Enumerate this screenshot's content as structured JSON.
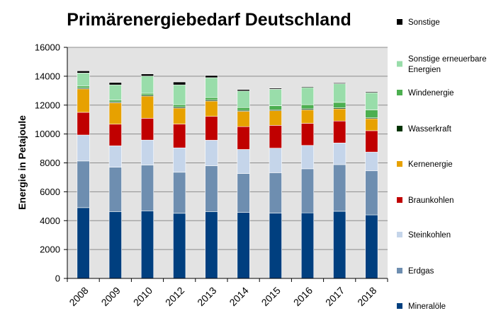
{
  "chart_data": {
    "type": "bar",
    "stacked": true,
    "title": "Primärenergiebedarf Deutschland",
    "xlabel": "",
    "ylabel": "Energie in Petajoule",
    "ylim": [
      0,
      16000
    ],
    "yticks": [
      0,
      2000,
      4000,
      6000,
      8000,
      10000,
      12000,
      14000,
      16000
    ],
    "grid": true,
    "legend_position": "right",
    "categories": [
      "2008",
      "2009",
      "2010",
      "2012",
      "2013",
      "2014",
      "2015",
      "2016",
      "2017",
      "2018"
    ],
    "series": [
      {
        "name": "Mineralöle",
        "color": "#003F7F",
        "values": [
          4900,
          4630,
          4680,
          4510,
          4630,
          4570,
          4520,
          4540,
          4650,
          4400
        ]
      },
      {
        "name": "Erdgas",
        "color": "#6E8EB0",
        "values": [
          3230,
          3070,
          3170,
          2840,
          3170,
          2690,
          2800,
          3050,
          3230,
          3050
        ]
      },
      {
        "name": "Steinkohlen",
        "color": "#C5D5EA",
        "values": [
          1800,
          1480,
          1730,
          1690,
          1770,
          1670,
          1700,
          1620,
          1500,
          1300
        ]
      },
      {
        "name": "Braunkohlen",
        "color": "#C00000",
        "values": [
          1570,
          1500,
          1510,
          1650,
          1650,
          1580,
          1580,
          1530,
          1520,
          1480
        ]
      },
      {
        "name": "Kernenergie",
        "color": "#E7A100",
        "values": [
          1620,
          1480,
          1530,
          1100,
          1060,
          1060,
          1010,
          930,
          840,
          830
        ]
      },
      {
        "name": "Wasserkraft",
        "color": "#003300",
        "values": [
          70,
          70,
          70,
          80,
          80,
          70,
          70,
          80,
          70,
          60
        ]
      },
      {
        "name": "Windenergie",
        "color": "#4CAF50",
        "values": [
          130,
          130,
          130,
          160,
          160,
          190,
          280,
          280,
          380,
          550
        ]
      },
      {
        "name": "Sonstige erneuerbare Energien",
        "color": "#99DDAA",
        "values": [
          900,
          1040,
          1190,
          1370,
          1380,
          1150,
          1140,
          1190,
          1290,
          1190
        ]
      },
      {
        "name": "Sonstige",
        "color": "#000000",
        "values": [
          150,
          170,
          150,
          200,
          150,
          100,
          70,
          60,
          60,
          60
        ]
      }
    ]
  },
  "legend": {
    "items": [
      {
        "label_lines": [
          "Sonstige"
        ],
        "color": "#000000"
      },
      {
        "label_lines": [
          "Sonstige erneuerbare",
          "Energien"
        ],
        "color": "#99DDAA"
      },
      {
        "label_lines": [
          "Windenergie"
        ],
        "color": "#4CAF50"
      },
      {
        "label_lines": [
          "Wasserkraft"
        ],
        "color": "#003300"
      },
      {
        "label_lines": [
          "Kernenergie"
        ],
        "color": "#E7A100"
      },
      {
        "label_lines": [
          "Braunkohlen"
        ],
        "color": "#C00000"
      },
      {
        "label_lines": [
          "Steinkohlen"
        ],
        "color": "#C5D5EA"
      },
      {
        "label_lines": [
          "Erdgas"
        ],
        "color": "#6E8EB0"
      },
      {
        "label_lines": [
          "Mineralöle"
        ],
        "color": "#003F7F"
      }
    ]
  },
  "colors": {
    "plot_background": "#E3E3E3",
    "gridline": "#8C8C8C",
    "axis": "#000000"
  }
}
